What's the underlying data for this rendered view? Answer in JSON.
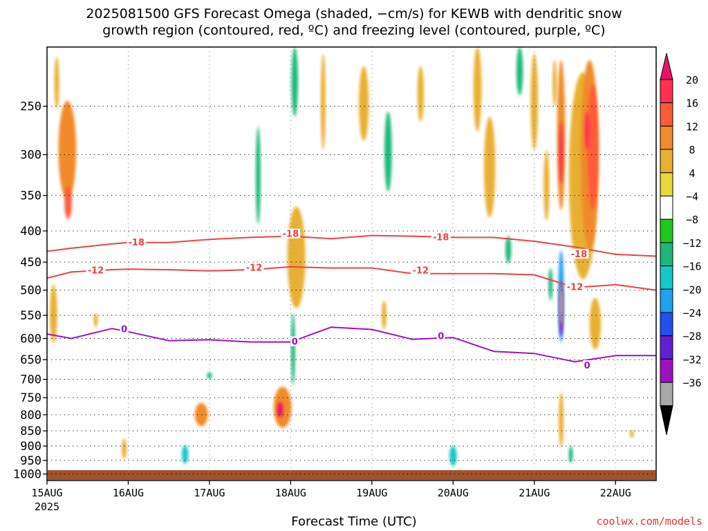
{
  "chart_data": {
    "type": "heatmap",
    "title_line1": "2025081500 GFS Forecast Omega (shaded, −cm/s) for KEWB with dendritic snow",
    "title_line2": "growth region (contoured, red, ºC) and freezing level (contoured, purple, ºC)",
    "xlabel": "Forecast Time (UTC)",
    "ylabel": "",
    "x_ticks": [
      "15AUG",
      "16AUG",
      "17AUG",
      "18AUG",
      "19AUG",
      "20AUG",
      "21AUG",
      "22AUG"
    ],
    "x_year_label": "2025",
    "x_range_days": [
      0,
      7.5
    ],
    "y_ticks": [
      250,
      300,
      350,
      400,
      450,
      500,
      550,
      600,
      650,
      700,
      750,
      800,
      850,
      900,
      950,
      1000
    ],
    "y_range_hpa": [
      1025,
      200
    ],
    "y_scale": "pressure (log)",
    "grid": true,
    "colorbar": {
      "labels": [
        "20",
        "16",
        "12",
        "8",
        "4",
        "−4",
        "−8",
        "−12",
        "−16",
        "−20",
        "−24",
        "−28",
        "−32",
        "−36"
      ],
      "colors": [
        "#ff3050",
        "#ff5a3a",
        "#f08a2a",
        "#e8b030",
        "#e8d83a",
        "#ffffff",
        "#1ec81e",
        "#1ab87a",
        "#17c8c8",
        "#20a0f0",
        "#2050f0",
        "#6020d0",
        "#a010c0",
        "#a8a8a8"
      ],
      "top_color": "#e8106a",
      "bottom_color": "#000000"
    },
    "contours": [
      {
        "level": "-18",
        "color": "#f04040",
        "x": [
          0,
          0.3,
          0.8,
          1.0,
          1.5,
          2.0,
          2.5,
          3.0,
          3.5,
          4.0,
          4.5,
          5.0,
          5.5,
          6.0,
          6.5,
          7.0,
          7.5
        ],
        "y": [
          432,
          427,
          420,
          418,
          418,
          413,
          410,
          408,
          412,
          407,
          408,
          410,
          410,
          416,
          425,
          437,
          440
        ]
      },
      {
        "level": "-12",
        "color": "#f04040",
        "x": [
          0,
          0.3,
          0.8,
          1.0,
          1.5,
          2.0,
          2.5,
          3.0,
          3.5,
          4.0,
          4.5,
          5.0,
          5.5,
          6.0,
          6.5,
          7.0,
          7.5
        ],
        "y": [
          478,
          467,
          463,
          462,
          463,
          465,
          463,
          458,
          460,
          460,
          470,
          470,
          470,
          472,
          495,
          490,
          500
        ]
      },
      {
        "level": "0",
        "color": "#9a10c8",
        "x": [
          0,
          0.3,
          0.8,
          1.0,
          1.5,
          2.0,
          2.5,
          3.0,
          3.5,
          4.0,
          4.5,
          5.0,
          5.5,
          6.0,
          6.5,
          7.0,
          7.5
        ],
        "y": [
          590,
          600,
          578,
          585,
          605,
          603,
          608,
          608,
          575,
          580,
          602,
          598,
          630,
          635,
          655,
          640,
          640
        ]
      }
    ],
    "contour_labels": [
      {
        "text": "-18",
        "x": 1.1,
        "y": 418,
        "color": "#f04040"
      },
      {
        "text": "-18",
        "x": 3.0,
        "y": 405,
        "color": "#f04040"
      },
      {
        "text": "-18",
        "x": 4.85,
        "y": 410,
        "color": "#f04040"
      },
      {
        "text": "-18",
        "x": 6.55,
        "y": 437,
        "color": "#f04040"
      },
      {
        "text": "-12",
        "x": 0.6,
        "y": 465,
        "color": "#f04040"
      },
      {
        "text": "-12",
        "x": 2.55,
        "y": 460,
        "color": "#f04040"
      },
      {
        "text": "-12",
        "x": 4.6,
        "y": 465,
        "color": "#f04040"
      },
      {
        "text": "-12",
        "x": 6.5,
        "y": 495,
        "color": "#f04040"
      },
      {
        "text": "0",
        "x": 0.95,
        "y": 580,
        "color": "#9a10c8"
      },
      {
        "text": "0",
        "x": 3.05,
        "y": 608,
        "color": "#9a10c8"
      },
      {
        "text": "0",
        "x": 4.85,
        "y": 595,
        "color": "#9a10c8"
      },
      {
        "text": "0",
        "x": 6.65,
        "y": 665,
        "color": "#9a10c8"
      }
    ],
    "omega_regions": [
      {
        "x": 0.12,
        "p": 230,
        "w": 0.06,
        "h": 45,
        "v": 6
      },
      {
        "x": 0.25,
        "p": 300,
        "w": 0.22,
        "h": 110,
        "v": 8
      },
      {
        "x": 0.26,
        "p": 360,
        "w": 0.09,
        "h": 45,
        "v": 12
      },
      {
        "x": 0.08,
        "p": 550,
        "w": 0.09,
        "h": 120,
        "v": 6
      },
      {
        "x": 0.6,
        "p": 560,
        "w": 0.04,
        "h": 30,
        "v": 6
      },
      {
        "x": 0.95,
        "p": 910,
        "w": 0.06,
        "h": 70,
        "v": 6
      },
      {
        "x": 1.9,
        "p": 800,
        "w": 0.16,
        "h": 70,
        "v": 8
      },
      {
        "x": 1.7,
        "p": 930,
        "w": 0.08,
        "h": 65,
        "v": -12
      },
      {
        "x": 2.0,
        "p": 690,
        "w": 0.06,
        "h": 18,
        "v": -8
      },
      {
        "x": 2.6,
        "p": 330,
        "w": 0.06,
        "h": 120,
        "v": -8
      },
      {
        "x": 2.9,
        "p": 780,
        "w": 0.22,
        "h": 120,
        "v": 10
      },
      {
        "x": 2.87,
        "p": 785,
        "w": 0.07,
        "h": 45,
        "v": 20
      },
      {
        "x": 3.03,
        "p": 630,
        "w": 0.05,
        "h": 170,
        "v": -10
      },
      {
        "x": 3.05,
        "p": 230,
        "w": 0.08,
        "h": 60,
        "v": -8
      },
      {
        "x": 3.07,
        "p": 450,
        "w": 0.22,
        "h": 170,
        "v": 6
      },
      {
        "x": 3.4,
        "p": 250,
        "w": 0.06,
        "h": 90,
        "v": 6
      },
      {
        "x": 3.9,
        "p": 250,
        "w": 0.12,
        "h": 70,
        "v": 6
      },
      {
        "x": 4.2,
        "p": 300,
        "w": 0.09,
        "h": 90,
        "v": -8
      },
      {
        "x": 4.6,
        "p": 240,
        "w": 0.08,
        "h": 50,
        "v": 6
      },
      {
        "x": 4.15,
        "p": 550,
        "w": 0.06,
        "h": 60,
        "v": 6
      },
      {
        "x": 5.0,
        "p": 935,
        "w": 0.09,
        "h": 70,
        "v": -12
      },
      {
        "x": 5.3,
        "p": 230,
        "w": 0.1,
        "h": 90,
        "v": 6
      },
      {
        "x": 5.45,
        "p": 320,
        "w": 0.14,
        "h": 120,
        "v": 6
      },
      {
        "x": 5.68,
        "p": 430,
        "w": 0.07,
        "h": 45,
        "v": -8
      },
      {
        "x": 5.82,
        "p": 220,
        "w": 0.08,
        "h": 40,
        "v": -8
      },
      {
        "x": 6.0,
        "p": 250,
        "w": 0.09,
        "h": 90,
        "v": 6
      },
      {
        "x": 6.15,
        "p": 340,
        "w": 0.07,
        "h": 90,
        "v": 6
      },
      {
        "x": 6.25,
        "p": 230,
        "w": 0.05,
        "h": 40,
        "v": 6
      },
      {
        "x": 6.2,
        "p": 490,
        "w": 0.05,
        "h": 60,
        "v": -8
      },
      {
        "x": 6.33,
        "p": 290,
        "w": 0.1,
        "h": 160,
        "v": 8
      },
      {
        "x": 6.33,
        "p": 300,
        "w": 0.05,
        "h": 70,
        "v": 16
      },
      {
        "x": 6.33,
        "p": 520,
        "w": 0.07,
        "h": 180,
        "v": -16
      },
      {
        "x": 6.33,
        "p": 540,
        "w": 0.04,
        "h": 110,
        "v": -28
      },
      {
        "x": 6.33,
        "p": 530,
        "w": 0.02,
        "h": 80,
        "v": -34
      },
      {
        "x": 6.33,
        "p": 820,
        "w": 0.06,
        "h": 170,
        "v": 6
      },
      {
        "x": 6.45,
        "p": 930,
        "w": 0.05,
        "h": 60,
        "v": -8
      },
      {
        "x": 6.6,
        "p": 350,
        "w": 0.35,
        "h": 260,
        "v": 6
      },
      {
        "x": 6.68,
        "p": 320,
        "w": 0.22,
        "h": 220,
        "v": 8
      },
      {
        "x": 6.72,
        "p": 300,
        "w": 0.13,
        "h": 140,
        "v": 12
      },
      {
        "x": 6.65,
        "p": 275,
        "w": 0.06,
        "h": 40,
        "v": 16
      },
      {
        "x": 6.75,
        "p": 570,
        "w": 0.14,
        "h": 110,
        "v": 6
      },
      {
        "x": 7.2,
        "p": 860,
        "w": 0.04,
        "h": 25,
        "v": 6
      }
    ]
  }
}
